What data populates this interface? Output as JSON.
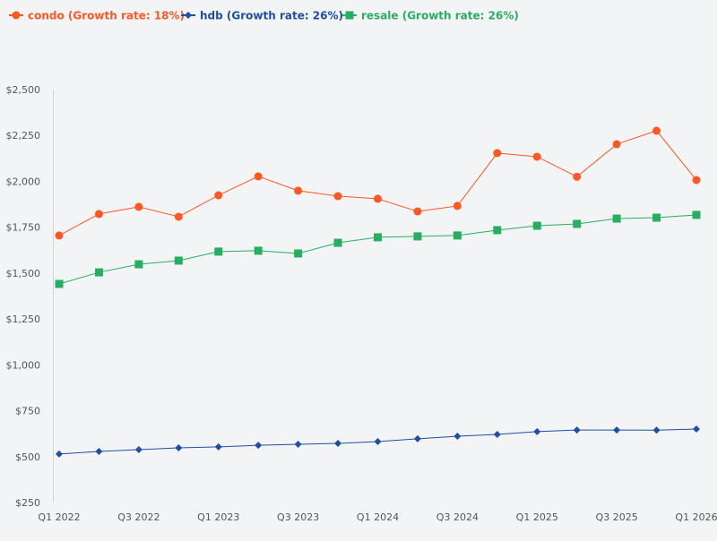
{
  "chart_data": {
    "type": "line",
    "title": "",
    "xlabel": "",
    "ylabel": "",
    "x": [
      "Q1 2022",
      "Q2 2022",
      "Q3 2022",
      "Q4 2022",
      "Q1 2023",
      "Q2 2023",
      "Q3 2023",
      "Q4 2023",
      "Q1 2024",
      "Q2 2024",
      "Q3 2024",
      "Q4 2024",
      "Q1 2025",
      "Q2 2025",
      "Q3 2025",
      "Q4 2025",
      "Q1 2026"
    ],
    "x_tick_labels": [
      "Q1 2022",
      "Q3 2022",
      "Q1 2023",
      "Q3 2023",
      "Q1 2024",
      "Q3 2024",
      "Q1 2025",
      "Q3 2025",
      "Q1 2026"
    ],
    "ylim": [
      250,
      2500
    ],
    "y_ticks": [
      250,
      500,
      750,
      1000,
      1250,
      1500,
      1750,
      2000,
      2250,
      2500
    ],
    "y_tick_labels": [
      "$250",
      "$500",
      "$750",
      "$1,000",
      "$1,250",
      "$1,500",
      "$1,750",
      "$2,000",
      "$2,250",
      "$2,500"
    ],
    "grid": false,
    "legend_placement": "top-left",
    "series": [
      {
        "name": "condo (Growth rate: 18%)",
        "color": "#ff5722",
        "marker": "circle",
        "values": [
          1705,
          1822,
          1861,
          1807,
          1924,
          2027,
          1949,
          1919,
          1905,
          1836,
          1866,
          2154,
          2134,
          2025,
          2202,
          2276,
          2007
        ]
      },
      {
        "name": "hdb (Growth rate: 26%)",
        "color": "#1e4fa3",
        "marker": "diamond",
        "values": [
          514,
          528,
          538,
          548,
          553,
          562,
          567,
          572,
          582,
          597,
          611,
          621,
          636,
          645,
          645,
          644,
          650
        ]
      },
      {
        "name": "resale (Growth rate: 26%)",
        "color": "#27ae60",
        "marker": "square",
        "values": [
          1441,
          1504,
          1548,
          1568,
          1617,
          1622,
          1607,
          1665,
          1695,
          1700,
          1705,
          1734,
          1758,
          1768,
          1797,
          1802,
          1817
        ]
      }
    ]
  }
}
